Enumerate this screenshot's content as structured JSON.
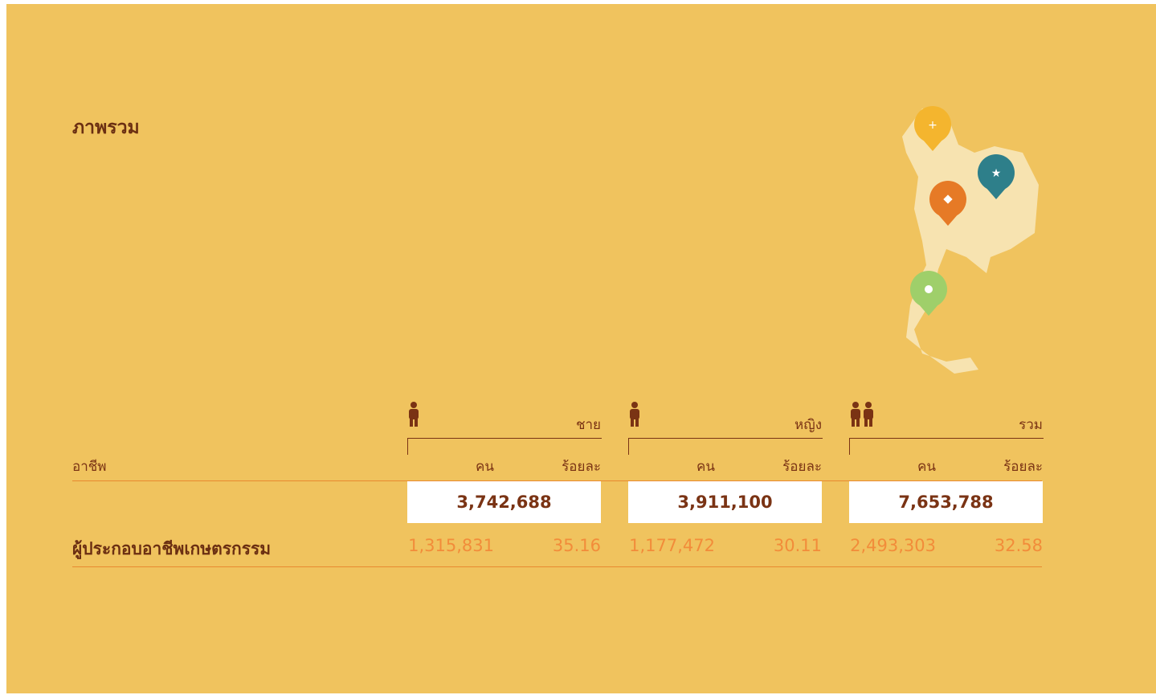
{
  "title": "ภาพรวม",
  "table": {
    "row_header": "อาชีพ",
    "groups": [
      {
        "label": "ชาย",
        "columns": [
          "คน",
          "ร้อยละ"
        ],
        "total": "3,742,688"
      },
      {
        "label": "หญิง",
        "columns": [
          "คน",
          "ร้อยละ"
        ],
        "total": "3,911,100"
      },
      {
        "label": "รวม",
        "columns": [
          "คน",
          "ร้อยละ"
        ],
        "total": "7,653,788"
      }
    ],
    "rows": [
      {
        "label": "ผู้ประกอบอาชีพเกษตรกรรม",
        "cells": [
          "1,315,831",
          "35.16",
          "1,177,472",
          "30.11",
          "2,493,303",
          "32.58"
        ]
      }
    ]
  }
}
